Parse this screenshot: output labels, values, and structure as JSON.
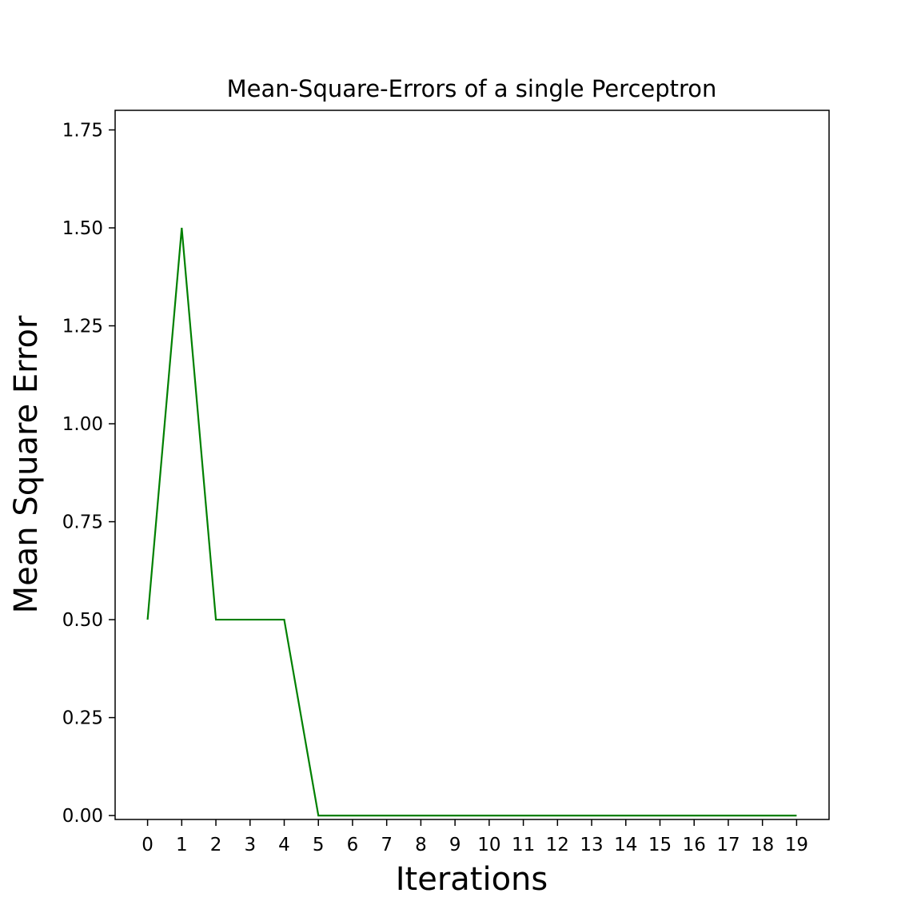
{
  "chart_data": {
    "type": "line",
    "title": "Mean-Square-Errors of a single Perceptron",
    "xlabel": "Iterations",
    "ylabel": "Mean Square Error",
    "x": [
      0,
      1,
      2,
      3,
      4,
      5,
      6,
      7,
      8,
      9,
      10,
      11,
      12,
      13,
      14,
      15,
      16,
      17,
      18,
      19
    ],
    "series": [
      {
        "values": [
          0.5,
          1.5,
          0.5,
          0.5,
          0.5,
          0,
          0,
          0,
          0,
          0,
          0,
          0,
          0,
          0,
          0,
          0,
          0,
          0,
          0,
          0
        ],
        "color": "#008000"
      }
    ],
    "xticks": [
      "0",
      "1",
      "2",
      "3",
      "4",
      "5",
      "6",
      "7",
      "8",
      "9",
      "10",
      "11",
      "12",
      "13",
      "14",
      "15",
      "16",
      "17",
      "18",
      "19"
    ],
    "yticks": [
      "0.00",
      "0.25",
      "0.50",
      "0.75",
      "1.00",
      "1.25",
      "1.50",
      "1.75"
    ],
    "xlim": [
      -0.95,
      19.95
    ],
    "ylim": [
      -0.01,
      1.8
    ],
    "grid": false,
    "legend": "none"
  }
}
